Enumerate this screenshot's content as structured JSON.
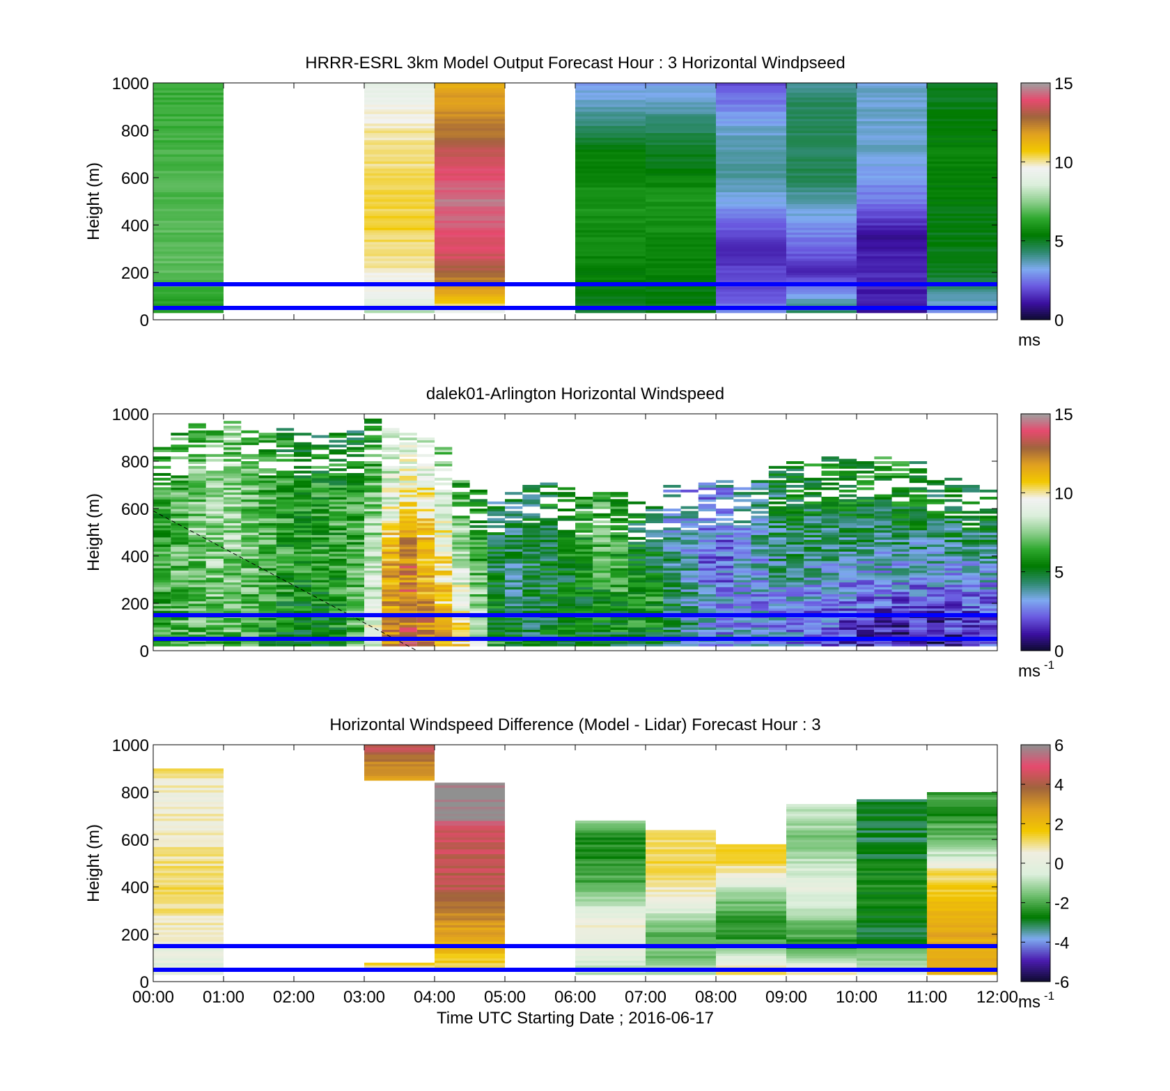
{
  "figure": {
    "xlabel": "Time UTC  Starting Date ; 2016-06-17"
  },
  "colors": {
    "reference_lines": "#0000ff",
    "speed_colormap": [
      "#0d0b2e",
      "#3b10a0",
      "#6a5ae0",
      "#7eaaf0",
      "#2f8a70",
      "#007a00",
      "#2ea82e",
      "#8fcf8f",
      "#dcefdc",
      "#f2f2f2",
      "#f2c800",
      "#e0a020",
      "#a0643c",
      "#e64a6e",
      "#a0a0a0"
    ],
    "diff_colormap": [
      "#0d0b2e",
      "#4b1cb0",
      "#7eaaf0",
      "#007a00",
      "#6fbf6f",
      "#dcefdc",
      "#f0eee0",
      "#f2c800",
      "#e0a020",
      "#a0643c",
      "#e64a6e",
      "#909090"
    ]
  },
  "chart_data": [
    {
      "type": "heatmap",
      "title": "HRRR-ESRL 3km Model Output   Forecast Hour : 3 Horizontal Windpseed",
      "ylabel": "Height (m)",
      "colorbar": {
        "ticks": [
          0,
          5,
          10,
          15
        ],
        "unit": "ms",
        "unit_sup": "",
        "range": [
          0,
          15
        ],
        "colormap": "speed"
      },
      "x_range": [
        0,
        12
      ],
      "ylim": [
        0,
        1000
      ],
      "y_ticks": [
        0,
        200,
        400,
        600,
        800,
        1000
      ],
      "x_tick_labels": [
        "00:00",
        "01:00",
        "02:00",
        "03:00",
        "04:00",
        "05:00",
        "06:00",
        "07:00",
        "08:00",
        "09:00",
        "10:00",
        "11:00",
        "12:00"
      ],
      "show_x_tick_labels": false,
      "reference_lines_m": [
        150,
        50
      ],
      "columns": [
        {
          "x_start": 0,
          "x_end": 1,
          "profile": [
            [
              30,
              6
            ],
            [
              200,
              7
            ],
            [
              1000,
              6.5
            ]
          ]
        },
        {
          "x_start": 3,
          "x_end": 4,
          "profile": [
            [
              30,
              8
            ],
            [
              100,
              9.5
            ],
            [
              400,
              10.5
            ],
            [
              800,
              10
            ],
            [
              900,
              9.5
            ],
            [
              1000,
              9
            ]
          ]
        },
        {
          "x_start": 4,
          "x_end": 5,
          "profile": [
            [
              30,
              9
            ],
            [
              100,
              11.5
            ],
            [
              250,
              13.5
            ],
            [
              500,
              14.5
            ],
            [
              700,
              13.5
            ],
            [
              800,
              12.5
            ],
            [
              1000,
              11.5
            ]
          ]
        },
        {
          "x_start": 6,
          "x_end": 7,
          "profile": [
            [
              30,
              5
            ],
            [
              200,
              5.5
            ],
            [
              500,
              6
            ],
            [
              700,
              5.5
            ],
            [
              800,
              4.5
            ],
            [
              1000,
              3
            ]
          ]
        },
        {
          "x_start": 7,
          "x_end": 8,
          "profile": [
            [
              30,
              5
            ],
            [
              200,
              5.5
            ],
            [
              500,
              6
            ],
            [
              700,
              5
            ],
            [
              800,
              4.5
            ],
            [
              1000,
              3
            ]
          ]
        },
        {
          "x_start": 8,
          "x_end": 9,
          "profile": [
            [
              30,
              3
            ],
            [
              100,
              2
            ],
            [
              300,
              1.5
            ],
            [
              600,
              4
            ],
            [
              800,
              3.5
            ],
            [
              1000,
              2
            ]
          ]
        },
        {
          "x_start": 9,
          "x_end": 10,
          "profile": [
            [
              30,
              4.5
            ],
            [
              200,
              1.5
            ],
            [
              400,
              3
            ],
            [
              600,
              4.5
            ],
            [
              900,
              4.5
            ],
            [
              1000,
              4
            ]
          ]
        },
        {
          "x_start": 10,
          "x_end": 11,
          "profile": [
            [
              30,
              1
            ],
            [
              200,
              1.5
            ],
            [
              350,
              1
            ],
            [
              500,
              2.5
            ],
            [
              700,
              3.5
            ],
            [
              1000,
              3.5
            ]
          ]
        },
        {
          "x_start": 11,
          "x_end": 12,
          "profile": [
            [
              30,
              3
            ],
            [
              200,
              5
            ],
            [
              700,
              5.5
            ],
            [
              1000,
              5
            ]
          ]
        }
      ]
    },
    {
      "type": "heatmap",
      "title": "dalek01-Arlington  Horizontal Windspeed",
      "ylabel": "Height (m)",
      "colorbar": {
        "ticks": [
          0,
          5,
          10,
          15
        ],
        "unit": "ms",
        "unit_sup": "-1",
        "range": [
          0,
          15
        ],
        "colormap": "speed"
      },
      "x_range": [
        0,
        12
      ],
      "ylim": [
        0,
        1000
      ],
      "y_ticks": [
        0,
        200,
        400,
        600,
        800,
        1000
      ],
      "x_tick_labels": [
        "00:00",
        "01:00",
        "02:00",
        "03:00",
        "04:00",
        "05:00",
        "06:00",
        "07:00",
        "08:00",
        "09:00",
        "10:00",
        "11:00",
        "12:00"
      ],
      "show_x_tick_labels": false,
      "reference_lines_m": [
        150,
        50
      ],
      "dashed_line": [
        [
          0,
          590
        ],
        [
          3.75,
          0
        ]
      ],
      "profile_interval_h": 0.25,
      "anchors": [
        {
          "t": 0,
          "top": 900,
          "speeds": [
            [
              0,
              6.5
            ],
            [
              300,
              6.5
            ],
            [
              600,
              6
            ],
            [
              900,
              6
            ]
          ]
        },
        {
          "t": 1,
          "top": 1000,
          "speeds": [
            [
              0,
              7
            ],
            [
              300,
              7.5
            ],
            [
              600,
              8
            ],
            [
              1000,
              7
            ]
          ]
        },
        {
          "t": 2,
          "top": 960,
          "speeds": [
            [
              0,
              5
            ],
            [
              300,
              6
            ],
            [
              600,
              6
            ],
            [
              900,
              5.5
            ]
          ]
        },
        {
          "t": 2.5,
          "top": 960,
          "speeds": [
            [
              0,
              5
            ],
            [
              300,
              6
            ],
            [
              600,
              6.5
            ],
            [
              900,
              5
            ]
          ]
        },
        {
          "t": 3,
          "top": 980,
          "speeds": [
            [
              0,
              7.5
            ],
            [
              300,
              7
            ],
            [
              600,
              6.5
            ],
            [
              900,
              5
            ]
          ]
        },
        {
          "t": 3.5,
          "top": 1000,
          "speeds": [
            [
              0,
              13.5
            ],
            [
              200,
              13
            ],
            [
              400,
              13
            ],
            [
              600,
              10
            ],
            [
              900,
              9
            ]
          ]
        },
        {
          "t": 4,
          "top": 980,
          "speeds": [
            [
              0,
              12
            ],
            [
              300,
              11
            ],
            [
              600,
              10
            ],
            [
              900,
              8
            ]
          ]
        },
        {
          "t": 4.5,
          "top": 700,
          "speeds": [
            [
              0,
              10
            ],
            [
              300,
              8
            ],
            [
              600,
              6
            ],
            [
              800,
              5
            ]
          ]
        },
        {
          "t": 5,
          "top": 730,
          "speeds": [
            [
              0,
              5
            ],
            [
              300,
              4
            ],
            [
              600,
              4
            ]
          ]
        },
        {
          "t": 6,
          "top": 730,
          "speeds": [
            [
              0,
              5
            ],
            [
              300,
              5.5
            ],
            [
              600,
              6
            ]
          ]
        },
        {
          "t": 6.5,
          "top": 700,
          "speeds": [
            [
              0,
              5
            ],
            [
              300,
              6.5
            ],
            [
              500,
              7
            ],
            [
              700,
              6
            ]
          ]
        },
        {
          "t": 7,
          "top": 680,
          "speeds": [
            [
              0,
              5
            ],
            [
              200,
              6.5
            ],
            [
              400,
              5
            ],
            [
              600,
              4.5
            ]
          ]
        },
        {
          "t": 7.5,
          "top": 700,
          "speeds": [
            [
              0,
              4
            ],
            [
              200,
              4.5
            ],
            [
              400,
              4
            ],
            [
              600,
              3
            ]
          ]
        },
        {
          "t": 8,
          "top": 720,
          "speeds": [
            [
              0,
              3
            ],
            [
              200,
              3
            ],
            [
              400,
              2
            ],
            [
              600,
              3
            ]
          ]
        },
        {
          "t": 9,
          "top": 800,
          "speeds": [
            [
              0,
              3
            ],
            [
              200,
              3
            ],
            [
              400,
              4.5
            ],
            [
              700,
              5
            ]
          ]
        },
        {
          "t": 10,
          "top": 840,
          "speeds": [
            [
              0,
              1.5
            ],
            [
              150,
              2
            ],
            [
              300,
              3
            ],
            [
              500,
              4.5
            ],
            [
              700,
              6
            ]
          ]
        },
        {
          "t": 11,
          "top": 800,
          "speeds": [
            [
              0,
              1
            ],
            [
              150,
              1.5
            ],
            [
              300,
              3
            ],
            [
              500,
              4.5
            ],
            [
              700,
              5.5
            ]
          ]
        },
        {
          "t": 12,
          "top": 700,
          "speeds": [
            [
              0,
              2
            ],
            [
              200,
              2.5
            ],
            [
              400,
              4
            ],
            [
              600,
              5
            ]
          ]
        }
      ]
    },
    {
      "type": "heatmap",
      "title": "Horizontal Windspeed Difference (Model - Lidar) Forecast Hour : 3",
      "ylabel": "Height (m)",
      "xlabel": "Time UTC  Starting Date ; 2016-06-17",
      "colorbar": {
        "ticks": [
          -6,
          -4,
          -2,
          0,
          2,
          4,
          6
        ],
        "unit": "ms",
        "unit_sup": "-1",
        "range": [
          -6,
          6
        ],
        "colormap": "diff"
      },
      "x_range": [
        0,
        12
      ],
      "ylim": [
        0,
        1000
      ],
      "y_ticks": [
        0,
        200,
        400,
        600,
        800,
        1000
      ],
      "x_tick_labels": [
        "00:00",
        "01:00",
        "02:00",
        "03:00",
        "04:00",
        "05:00",
        "06:00",
        "07:00",
        "08:00",
        "09:00",
        "10:00",
        "11:00",
        "12:00"
      ],
      "show_x_tick_labels": true,
      "reference_lines_m": [
        150,
        50
      ],
      "columns": [
        {
          "x_start": 0,
          "x_end": 1,
          "bottom": 30,
          "top": 900,
          "profile": [
            [
              30,
              -0.5
            ],
            [
              150,
              0.3
            ],
            [
              350,
              1.2
            ],
            [
              600,
              0.7
            ],
            [
              800,
              0.5
            ],
            [
              900,
              1.2
            ]
          ]
        },
        {
          "x_start": 3,
          "x_end": 4,
          "bottom": 850,
          "top": 1000,
          "profile": [
            [
              850,
              2.5
            ],
            [
              950,
              3.5
            ],
            [
              1000,
              4.5
            ]
          ]
        },
        {
          "x_start": 3,
          "x_end": 4,
          "bottom": 50,
          "top": 80,
          "profile": [
            [
              50,
              1.2
            ],
            [
              80,
              1.2
            ]
          ]
        },
        {
          "x_start": 4,
          "x_end": 5,
          "bottom": 50,
          "top": 840,
          "profile": [
            [
              50,
              1.2
            ],
            [
              200,
              2.5
            ],
            [
              400,
              4.2
            ],
            [
              600,
              4.5
            ],
            [
              640,
              4.5
            ],
            [
              700,
              6
            ],
            [
              840,
              6
            ]
          ]
        },
        {
          "x_start": 6,
          "x_end": 7,
          "bottom": 30,
          "top": 680,
          "profile": [
            [
              30,
              -0.8
            ],
            [
              250,
              0.5
            ],
            [
              400,
              -2
            ],
            [
              600,
              -2.5
            ],
            [
              680,
              -1.5
            ]
          ]
        },
        {
          "x_start": 7,
          "x_end": 8,
          "bottom": 30,
          "top": 640,
          "profile": [
            [
              30,
              -1
            ],
            [
              200,
              -2
            ],
            [
              350,
              0.5
            ],
            [
              500,
              1.2
            ],
            [
              640,
              1.2
            ]
          ]
        },
        {
          "x_start": 8,
          "x_end": 9,
          "bottom": 30,
          "top": 580,
          "profile": [
            [
              30,
              1.2
            ],
            [
              200,
              -2.5
            ],
            [
              350,
              -1.5
            ],
            [
              500,
              1.2
            ],
            [
              580,
              1.2
            ]
          ]
        },
        {
          "x_start": 9,
          "x_end": 10,
          "bottom": 30,
          "top": 750,
          "profile": [
            [
              30,
              1
            ],
            [
              150,
              -2.5
            ],
            [
              400,
              0
            ],
            [
              600,
              -1.5
            ],
            [
              750,
              -0.5
            ]
          ]
        },
        {
          "x_start": 10,
          "x_end": 11,
          "bottom": 30,
          "top": 770,
          "profile": [
            [
              30,
              -0.3
            ],
            [
              200,
              -3
            ],
            [
              400,
              -2.5
            ],
            [
              600,
              -3
            ],
            [
              770,
              -3
            ]
          ]
        },
        {
          "x_start": 11,
          "x_end": 12,
          "bottom": 30,
          "top": 800,
          "profile": [
            [
              30,
              2
            ],
            [
              200,
              2.5
            ],
            [
              450,
              1.2
            ],
            [
              550,
              -1
            ],
            [
              720,
              -2.5
            ],
            [
              800,
              -2
            ]
          ]
        }
      ]
    }
  ]
}
